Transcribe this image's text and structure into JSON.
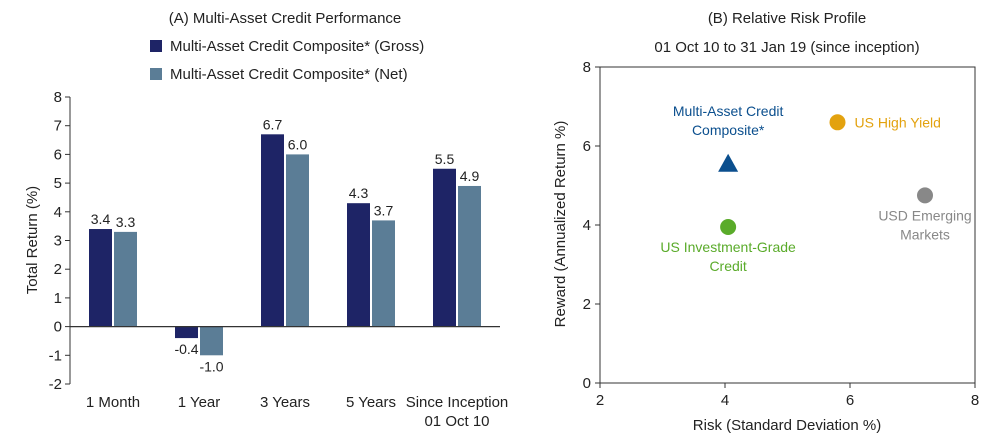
{
  "chart_data": [
    {
      "type": "bar",
      "title": "(A) Multi-Asset Credit Performance",
      "ylabel": "Total Return (%)",
      "xlabel": "",
      "ylim": [
        -2,
        8
      ],
      "yticks": [
        "8",
        "7",
        "6",
        "5",
        "4",
        "3",
        "2",
        "1",
        "0",
        "-1",
        "-2"
      ],
      "categories": [
        [
          "1 Month"
        ],
        [
          "1 Year"
        ],
        [
          "3 Years"
        ],
        [
          "5 Years"
        ],
        [
          "Since Inception",
          "01 Oct 10"
        ]
      ],
      "series": [
        {
          "name": "Multi-Asset Credit Composite* (Gross)",
          "color": "#1e2466",
          "values": [
            3.4,
            -0.4,
            6.7,
            4.3,
            5.5
          ],
          "labels": [
            "3.4",
            "-0.4",
            "6.7",
            "4.3",
            "5.5"
          ]
        },
        {
          "name": "Multi-Asset Credit Composite* (Net)",
          "color": "#5b7d96",
          "values": [
            3.3,
            -1.0,
            6.0,
            3.7,
            4.9
          ],
          "labels": [
            "3.3",
            "-1.0",
            "6.0",
            "3.7",
            "4.9"
          ]
        }
      ],
      "legend": "top"
    },
    {
      "type": "scatter",
      "title": "(B) Relative Risk Profile",
      "subtitle": "01 Oct 10 to 31 Jan 19 (since inception)",
      "xlabel": "Risk (Standard Deviation %)",
      "ylabel": "Reward (Annualized Return %)",
      "xlim": [
        2,
        8
      ],
      "ylim": [
        0,
        8
      ],
      "xticks": [
        "2",
        "4",
        "6",
        "8"
      ],
      "yticks": [
        "8",
        "6",
        "4",
        "2",
        "0"
      ],
      "points": [
        {
          "name": "Multi-Asset Credit Composite*",
          "lines": [
            "Multi-Asset Credit",
            "Composite*"
          ],
          "x": 4.05,
          "y": 5.55,
          "marker": "triangle",
          "color": "#0b4f8e"
        },
        {
          "name": "US High Yield",
          "lines": [
            "US High Yield"
          ],
          "x": 5.8,
          "y": 6.6,
          "marker": "circle",
          "color": "#e3a20f"
        },
        {
          "name": "USD Emerging Markets",
          "lines": [
            "USD Emerging",
            "Markets"
          ],
          "x": 7.2,
          "y": 4.75,
          "marker": "circle",
          "color": "#888888"
        },
        {
          "name": "US Investment-Grade Credit",
          "lines": [
            "US Investment-Grade",
            "Credit"
          ],
          "x": 4.05,
          "y": 3.95,
          "marker": "circle",
          "color": "#5aab2a"
        }
      ]
    }
  ]
}
